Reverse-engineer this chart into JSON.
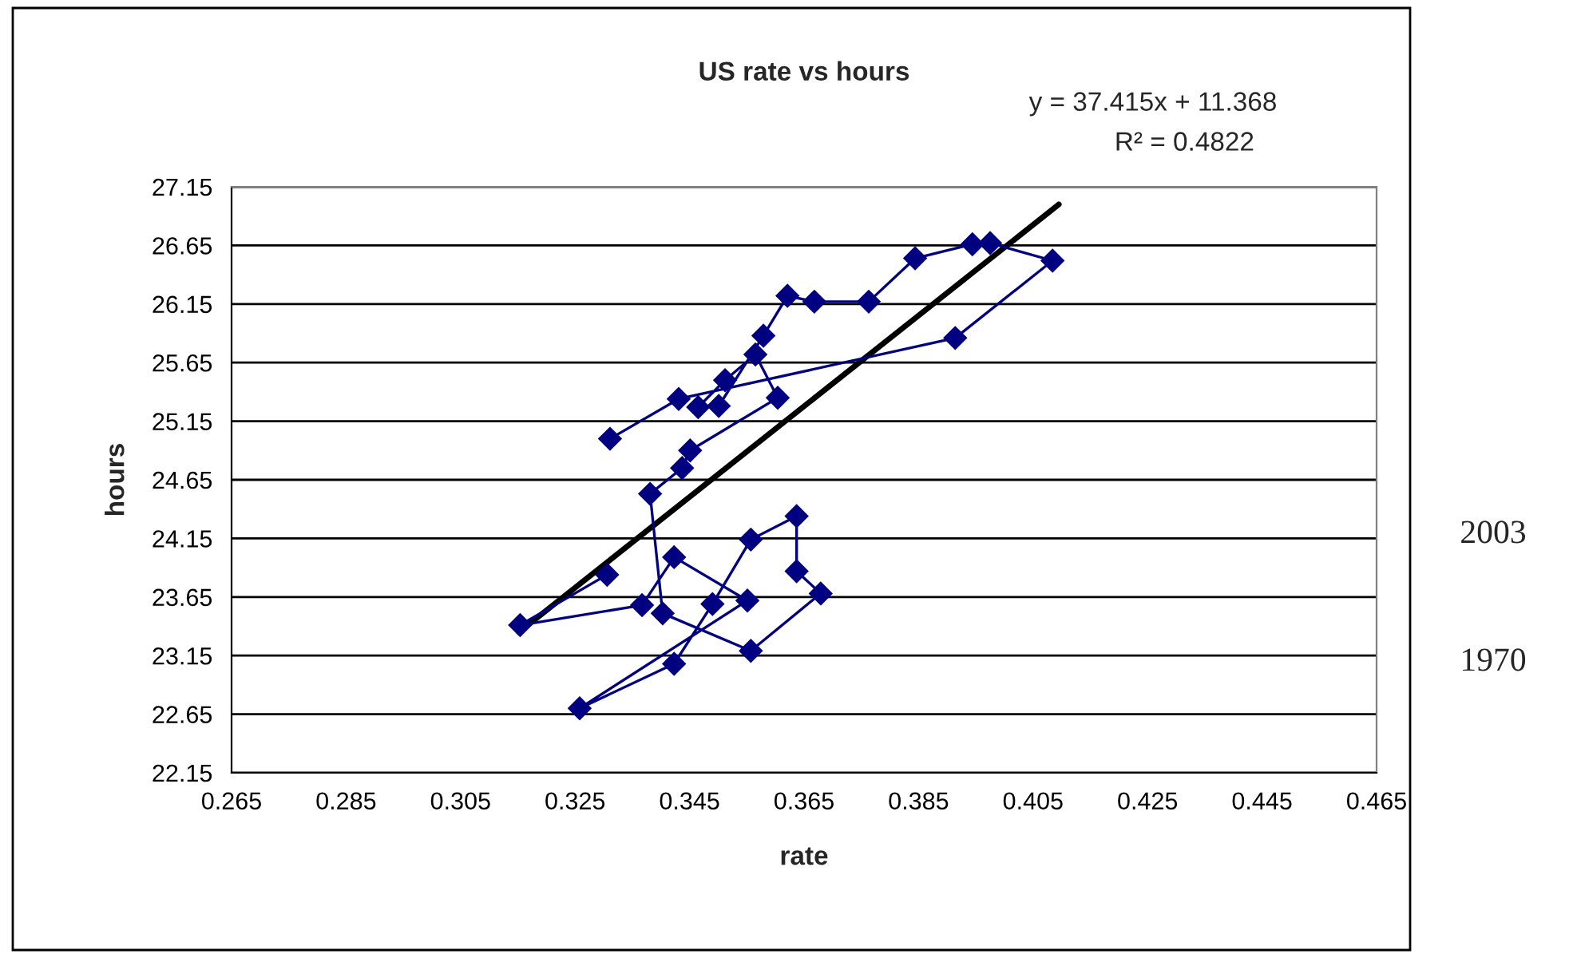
{
  "chart_data": {
    "type": "line",
    "title": "US rate vs hours",
    "xlabel": "rate",
    "ylabel": "hours",
    "series": [
      {
        "color": "#000080",
        "marker": "diamond",
        "x": [
          0.3306,
          0.3154,
          0.3367,
          0.3423,
          0.3551,
          0.3258,
          0.3423,
          0.349,
          0.3557,
          0.3637,
          0.3637,
          0.3679,
          0.3557,
          0.3403,
          0.3381,
          0.3437,
          0.3451,
          0.3604,
          0.3565,
          0.3512,
          0.3465,
          0.3501,
          0.3579,
          0.3621,
          0.3668,
          0.3763,
          0.3844,
          0.3944,
          0.3975,
          0.4084,
          0.3914,
          0.3431,
          0.3311
        ],
        "values": [
          23.84,
          23.41,
          23.58,
          23.99,
          23.62,
          22.7,
          23.08,
          23.59,
          24.14,
          24.34,
          23.87,
          23.68,
          23.19,
          23.51,
          24.53,
          24.75,
          24.9,
          25.35,
          25.72,
          25.5,
          25.27,
          25.28,
          25.88,
          26.22,
          26.17,
          26.17,
          26.54,
          26.66,
          26.67,
          26.52,
          25.86,
          25.34,
          25.0
        ]
      },
      {
        "color": "#000000",
        "marker": "none",
        "x": [
          0.3152,
          0.4095
        ],
        "values": [
          23.35,
          27.0
        ]
      }
    ],
    "xlim": [
      0.265,
      0.465
    ],
    "xticks": [
      0.265,
      0.285,
      0.305,
      0.325,
      0.345,
      0.365,
      0.385,
      0.405,
      0.425,
      0.445,
      0.465
    ],
    "ylim": [
      22.15,
      27.15
    ],
    "yticks": [
      22.15,
      22.65,
      23.15,
      23.65,
      24.15,
      24.65,
      25.15,
      25.65,
      26.15,
      26.65,
      27.15
    ],
    "grid": "y",
    "legend": false,
    "annotations": [
      "y = 37.415x + 11.368",
      "R² = 0.4822",
      "2003",
      "1970"
    ]
  }
}
